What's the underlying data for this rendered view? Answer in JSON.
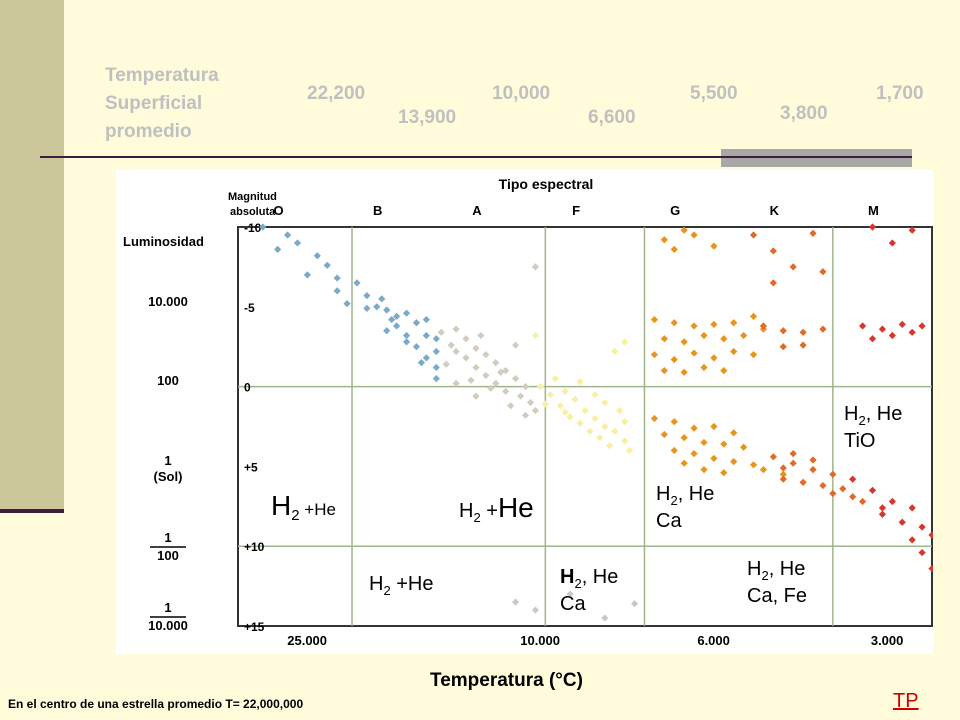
{
  "header": {
    "temp_label": "Temperatura\nSuperficial\npromedio",
    "temps": [
      "22,200",
      "13,900",
      "10,000",
      "6,600",
      "5,500",
      "3,800",
      "1,700"
    ]
  },
  "chart_data": {
    "type": "scatter",
    "title": "Tipo espectral",
    "y_left_title": "Luminosidad",
    "y_mag_title": "Magnitud absoluta",
    "spectral_types": [
      "O",
      "B",
      "A",
      "F",
      "G",
      "K",
      "M"
    ],
    "luminosity_ticks": [
      "10.000",
      "100",
      "1\n(Sol)",
      "1\n100",
      "1\n10.000"
    ],
    "magnitude_ticks": [
      "-10",
      "-5",
      "0",
      "+5",
      "+10",
      "+15"
    ],
    "ylim": [
      -10,
      15
    ],
    "x_ticks": [
      "25.000",
      "10.000",
      "6.000",
      "3.000"
    ],
    "xlabel": "Temperatura (°C)",
    "grid": true,
    "series": [
      {
        "color": "#7aa9c9",
        "points": [
          [
            0.25,
            -10
          ],
          [
            0.5,
            -9.5
          ],
          [
            0.6,
            -9
          ],
          [
            0.4,
            -8.6
          ],
          [
            0.8,
            -8.2
          ],
          [
            0.9,
            -7.6
          ],
          [
            0.7,
            -7
          ],
          [
            1.0,
            -6.8
          ],
          [
            1.2,
            -6.5
          ],
          [
            1.0,
            -6
          ],
          [
            1.3,
            -5.7
          ],
          [
            1.1,
            -5.2
          ],
          [
            1.4,
            -5
          ],
          [
            1.5,
            -4.8
          ],
          [
            1.6,
            -4.4
          ],
          [
            1.7,
            -4.6
          ],
          [
            1.8,
            -4
          ],
          [
            1.9,
            -4.2
          ],
          [
            1.6,
            -3.8
          ],
          [
            1.5,
            -3.5
          ],
          [
            1.9,
            -3.2
          ],
          [
            2.0,
            -3
          ],
          [
            1.7,
            -2.8
          ],
          [
            1.8,
            -2.5
          ],
          [
            2.0,
            -2.2
          ],
          [
            1.9,
            -1.8
          ],
          [
            2.0,
            -1.2
          ],
          [
            2.0,
            -0.5
          ],
          [
            1.85,
            -1.5
          ],
          [
            1.7,
            -3.2
          ],
          [
            1.55,
            -4.2
          ],
          [
            1.45,
            -5.5
          ],
          [
            1.3,
            -4.9
          ]
        ]
      },
      {
        "color": "#d2ccbe",
        "points": [
          [
            2.05,
            -3.4
          ],
          [
            2.2,
            -3.6
          ],
          [
            2.3,
            -3
          ],
          [
            2.15,
            -2.6
          ],
          [
            2.4,
            -2.4
          ],
          [
            2.5,
            -2
          ],
          [
            2.3,
            -1.8
          ],
          [
            2.6,
            -1.5
          ],
          [
            2.4,
            -1.2
          ],
          [
            2.7,
            -1
          ],
          [
            2.5,
            -0.7
          ],
          [
            2.8,
            -0.5
          ],
          [
            2.6,
            -0.2
          ],
          [
            2.9,
            0
          ],
          [
            2.7,
            0.3
          ],
          [
            2.85,
            0.6
          ],
          [
            2.95,
            1
          ],
          [
            2.75,
            1.2
          ],
          [
            3.0,
            1.5
          ],
          [
            2.9,
            1.8
          ],
          [
            3.0,
            -7.5
          ],
          [
            2.1,
            -1.4
          ],
          [
            2.35,
            -0.4
          ],
          [
            2.55,
            0.1
          ],
          [
            2.2,
            -2.2
          ],
          [
            2.45,
            -3.2
          ],
          [
            2.65,
            -0.9
          ],
          [
            2.8,
            -2.6
          ],
          [
            2.2,
            -0.2
          ],
          [
            2.4,
            0.6
          ]
        ]
      },
      {
        "color": "#f8f0a0",
        "points": [
          [
            3.0,
            -3.2
          ],
          [
            3.05,
            0
          ],
          [
            3.2,
            -0.5
          ],
          [
            3.15,
            0.5
          ],
          [
            3.3,
            0.3
          ],
          [
            3.4,
            0.8
          ],
          [
            3.25,
            1.2
          ],
          [
            3.5,
            1.5
          ],
          [
            3.35,
            1.9
          ],
          [
            3.6,
            2
          ],
          [
            3.45,
            2.3
          ],
          [
            3.7,
            2.5
          ],
          [
            3.55,
            2.8
          ],
          [
            3.8,
            2.8
          ],
          [
            3.65,
            3.2
          ],
          [
            3.9,
            3.4
          ],
          [
            3.75,
            3.7
          ],
          [
            3.95,
            4
          ],
          [
            3.85,
            1.5
          ],
          [
            3.6,
            0.5
          ],
          [
            3.45,
            -0.3
          ],
          [
            3.3,
            1.6
          ],
          [
            3.7,
            1
          ],
          [
            3.9,
            2.2
          ],
          [
            3.1,
            1.1
          ],
          [
            3.9,
            -2.8
          ],
          [
            3.8,
            -2.2
          ]
        ]
      },
      {
        "color": "#e8941c",
        "points": [
          [
            4.3,
            -9.2
          ],
          [
            4.5,
            -9.8
          ],
          [
            4.4,
            -8.6
          ],
          [
            4.6,
            -9.5
          ],
          [
            4.8,
            -8.8
          ],
          [
            4.2,
            -4.2
          ],
          [
            4.4,
            -4
          ],
          [
            4.6,
            -3.8
          ],
          [
            4.8,
            -3.9
          ],
          [
            5.0,
            -4
          ],
          [
            5.2,
            -4.4
          ],
          [
            4.3,
            -3
          ],
          [
            4.5,
            -2.8
          ],
          [
            4.7,
            -3.2
          ],
          [
            4.9,
            -3
          ],
          [
            5.1,
            -3.2
          ],
          [
            5.3,
            -3.6
          ],
          [
            4.2,
            -2
          ],
          [
            4.4,
            -1.7
          ],
          [
            4.6,
            -2.1
          ],
          [
            4.8,
            -1.8
          ],
          [
            5.0,
            -2.2
          ],
          [
            5.2,
            -2
          ],
          [
            4.3,
            -1
          ],
          [
            4.5,
            -0.9
          ],
          [
            4.7,
            -1.2
          ],
          [
            4.9,
            -1
          ],
          [
            4.2,
            2
          ],
          [
            4.4,
            2.2
          ],
          [
            4.6,
            2.6
          ],
          [
            4.8,
            2.5
          ],
          [
            5.0,
            2.9
          ],
          [
            4.3,
            3
          ],
          [
            4.5,
            3.2
          ],
          [
            4.7,
            3.5
          ],
          [
            4.9,
            3.6
          ],
          [
            5.1,
            3.8
          ],
          [
            4.4,
            4
          ],
          [
            4.6,
            4.2
          ],
          [
            4.8,
            4.5
          ],
          [
            5.0,
            4.7
          ],
          [
            5.2,
            4.9
          ],
          [
            4.5,
            4.8
          ],
          [
            4.7,
            5.2
          ],
          [
            4.9,
            5.4
          ],
          [
            5.3,
            5.2
          ],
          [
            5.5,
            5.5
          ]
        ]
      },
      {
        "color": "#e06a2a",
        "points": [
          [
            5.2,
            -9.5
          ],
          [
            5.4,
            -8.5
          ],
          [
            5.6,
            -7.5
          ],
          [
            5.4,
            -6.5
          ],
          [
            5.8,
            -9.6
          ],
          [
            5.9,
            -7.2
          ],
          [
            5.3,
            -3.8
          ],
          [
            5.5,
            -3.5
          ],
          [
            5.7,
            -3.4
          ],
          [
            5.9,
            -3.6
          ],
          [
            5.5,
            -2.5
          ],
          [
            5.7,
            -2.6
          ],
          [
            5.4,
            4.4
          ],
          [
            5.6,
            4.8
          ],
          [
            5.8,
            5.2
          ],
          [
            6.0,
            5.5
          ],
          [
            5.5,
            5.8
          ],
          [
            5.7,
            6
          ],
          [
            5.9,
            6.2
          ],
          [
            6.1,
            6.4
          ],
          [
            5.6,
            4.2
          ],
          [
            6.0,
            6.7
          ],
          [
            6.2,
            6.9
          ],
          [
            6.3,
            7.2
          ],
          [
            5.5,
            5.1
          ],
          [
            5.8,
            4.6
          ]
        ]
      },
      {
        "color": "#d8362a",
        "points": [
          [
            6.4,
            -10
          ],
          [
            6.6,
            -9
          ],
          [
            6.8,
            -9.8
          ],
          [
            6.3,
            -3.8
          ],
          [
            6.5,
            -3.6
          ],
          [
            6.7,
            -3.9
          ],
          [
            6.9,
            -3.8
          ],
          [
            7.1,
            -3.7
          ],
          [
            6.4,
            -3
          ],
          [
            6.6,
            -3.2
          ],
          [
            6.8,
            -3.4
          ],
          [
            6.4,
            6.5
          ],
          [
            6.6,
            7.2
          ],
          [
            6.8,
            7.6
          ],
          [
            6.5,
            8
          ],
          [
            6.7,
            8.5
          ],
          [
            6.9,
            8.8
          ],
          [
            7.0,
            9.3
          ],
          [
            6.8,
            9.6
          ],
          [
            7.1,
            10
          ],
          [
            6.9,
            10.4
          ],
          [
            7.2,
            11
          ],
          [
            7.0,
            11.4
          ],
          [
            7.3,
            12
          ],
          [
            7.1,
            12.5
          ],
          [
            7.4,
            13
          ],
          [
            7.2,
            13.4
          ],
          [
            7.4,
            14
          ],
          [
            6.2,
            5.8
          ],
          [
            6.5,
            7.6
          ]
        ]
      },
      {
        "color": "#c8c8c8",
        "points": [
          [
            2.8,
            13.5
          ],
          [
            3.0,
            14
          ],
          [
            3.35,
            13
          ],
          [
            3.7,
            14.5
          ],
          [
            4.0,
            13.6
          ]
        ]
      }
    ],
    "labels": [
      {
        "t": "H",
        "sub": "2",
        "rest": ", He\nTiO"
      },
      {
        "t": "H",
        "sub": "2",
        "rest": " +He"
      },
      {
        "t": "H",
        "sub": "2",
        "rest": " +He"
      },
      {
        "t": "H",
        "sub": "2",
        "rest": ", He\nCa"
      },
      {
        "t": "H",
        "sub": "2",
        "rest": " +He"
      },
      {
        "t": "H",
        "sub": "2",
        "rest": ", He\nCa"
      },
      {
        "t": "H",
        "sub": "2",
        "rest": ", He\nCa, Fe"
      }
    ]
  },
  "footer": "En el centro de una estrella promedio T= 22,000,000",
  "link": "TP"
}
